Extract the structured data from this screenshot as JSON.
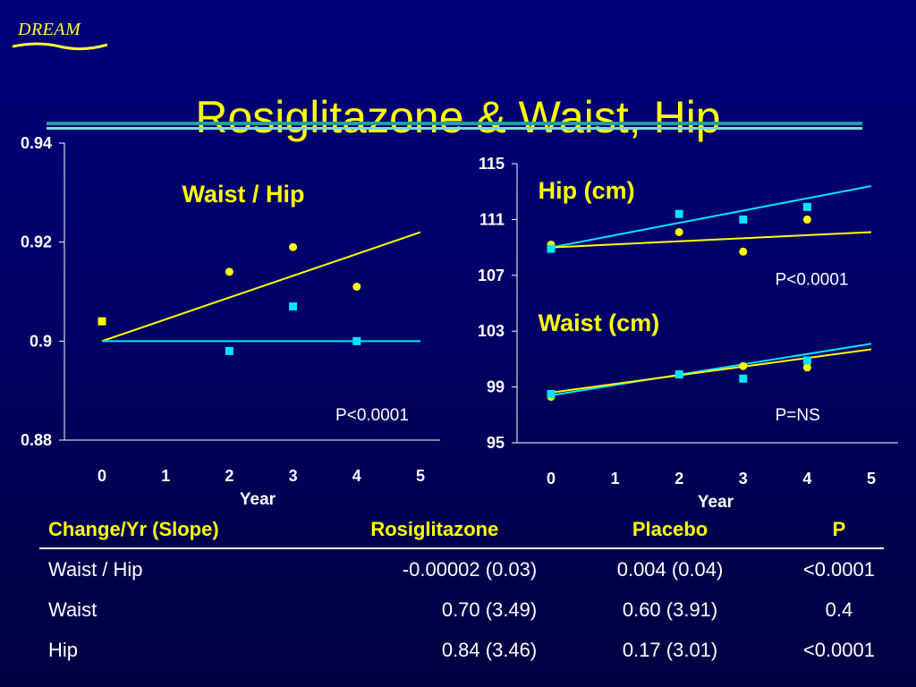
{
  "logo": {
    "text": "DREAM"
  },
  "title": "Rosiglitazone & Waist, Hip",
  "colors": {
    "yellow": "#ffff00",
    "cyan": "#00e5ff",
    "background": "#000066"
  },
  "chart_data": [
    {
      "type": "scatter",
      "title": "Waist / Hip",
      "xlabel": "Year",
      "ylabel": "",
      "xlim": [
        0,
        5
      ],
      "ylim": [
        0.88,
        0.94
      ],
      "x_ticks": [
        "0",
        "1",
        "2",
        "3",
        "4",
        "5"
      ],
      "y_ticks": [
        "0.94",
        "0.92",
        "0.9",
        "0.88"
      ],
      "annotation": "P<0.0001",
      "grid": false,
      "series": [
        {
          "marker": "circle",
          "color": "#ffff00",
          "points": [
            [
              2,
              0.914
            ],
            [
              3,
              0.919
            ],
            [
              4,
              0.911
            ]
          ]
        },
        {
          "marker": "square",
          "color": "#ffff00",
          "points": [
            [
              0,
              0.904
            ]
          ]
        },
        {
          "marker": "square",
          "color": "#00e5ff",
          "points": [
            [
              2,
              0.898
            ],
            [
              3,
              0.907
            ],
            [
              4,
              0.9
            ]
          ]
        }
      ],
      "trend_lines": [
        {
          "color": "#ffff00",
          "from": [
            0,
            0.9
          ],
          "to": [
            5,
            0.922
          ]
        },
        {
          "color": "#00e5ff",
          "from": [
            0,
            0.9
          ],
          "to": [
            5,
            0.9
          ]
        }
      ]
    },
    {
      "type": "scatter",
      "title": "",
      "xlabel": "Year",
      "ylabel": "",
      "xlim": [
        0,
        5
      ],
      "ylim": [
        95,
        115
      ],
      "x_ticks": [
        "0",
        "1",
        "2",
        "3",
        "4",
        "5"
      ],
      "y_ticks": [
        "115",
        "111",
        "107",
        "103",
        "99",
        "95"
      ],
      "labels": [
        {
          "text": "Hip (cm)",
          "at": [
            -0.2,
            112.5
          ]
        },
        {
          "text": "Waist (cm)",
          "at": [
            -0.2,
            103.0
          ]
        }
      ],
      "annotations": [
        {
          "text": "P<0.0001",
          "at": [
            3.5,
            106.3
          ]
        },
        {
          "text": "P=NS",
          "at": [
            3.5,
            96.6
          ]
        }
      ],
      "grid": false,
      "series": [
        {
          "marker": "circle",
          "color": "#ffff00",
          "points": [
            [
              0,
              109.2
            ],
            [
              2,
              110.1
            ],
            [
              3,
              108.7
            ],
            [
              4,
              111.0
            ]
          ]
        },
        {
          "marker": "square",
          "color": "#00e5ff",
          "points": [
            [
              0,
              108.9
            ],
            [
              2,
              111.4
            ],
            [
              3,
              111.0
            ],
            [
              4,
              111.9
            ]
          ]
        },
        {
          "marker": "circle",
          "color": "#ffff00",
          "points": [
            [
              0,
              98.3
            ],
            [
              2,
              99.9
            ],
            [
              3,
              100.5
            ],
            [
              4,
              100.4
            ]
          ]
        },
        {
          "marker": "square",
          "color": "#00e5ff",
          "points": [
            [
              0,
              98.5
            ],
            [
              2,
              99.9
            ],
            [
              3,
              99.6
            ],
            [
              4,
              100.9
            ]
          ]
        }
      ],
      "trend_lines": [
        {
          "color": "#00e5ff",
          "from": [
            0,
            109.0
          ],
          "to": [
            5,
            113.4
          ]
        },
        {
          "color": "#ffff00",
          "from": [
            0,
            109.0
          ],
          "to": [
            5,
            110.1
          ]
        },
        {
          "color": "#00e5ff",
          "from": [
            0,
            98.4
          ],
          "to": [
            5,
            102.1
          ]
        },
        {
          "color": "#ffff00",
          "from": [
            0,
            98.6
          ],
          "to": [
            5,
            101.7
          ]
        }
      ]
    }
  ],
  "table": {
    "headers": [
      "Change/Yr (Slope)",
      "Rosiglitazone",
      "Placebo",
      "P"
    ],
    "rows": [
      [
        "Waist / Hip",
        "-0.00002 (0.03)",
        "0.004 (0.04)",
        "<0.0001"
      ],
      [
        "Waist",
        "0.70 (3.49)",
        "0.60 (3.91)",
        "0.4"
      ],
      [
        "Hip",
        "0.84 (3.46)",
        "0.17 (3.01)",
        "<0.0001"
      ]
    ]
  }
}
